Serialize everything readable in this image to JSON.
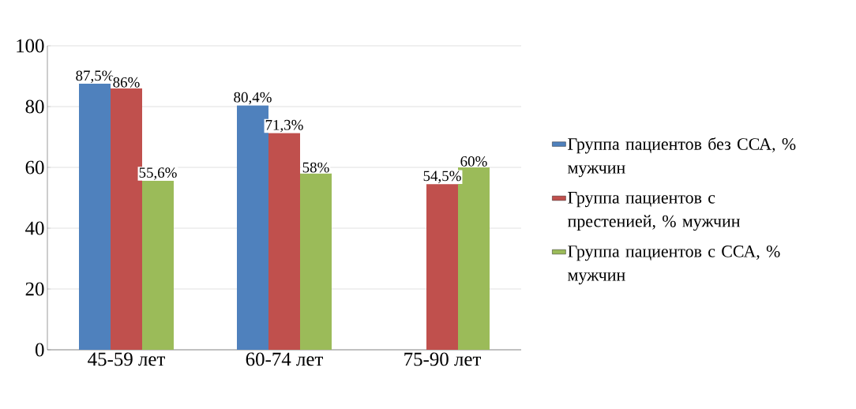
{
  "chart_data": {
    "type": "bar",
    "categories": [
      "45-59 лет",
      "60-74 лет",
      "75-90 лет"
    ],
    "series": [
      {
        "name": "Группа пациентов без ССА, % мужчин",
        "color": "#4f81bd",
        "values": [
          87.5,
          80.4,
          null
        ],
        "value_labels": [
          "87,5%",
          "80,4%",
          null
        ]
      },
      {
        "name": "Группа пациентов с престенией, % мужчин",
        "color": "#c0504d",
        "values": [
          86,
          71.3,
          54.5
        ],
        "value_labels": [
          "86%",
          "71,3%",
          "54,5%"
        ]
      },
      {
        "name": "Группа пациентов с ССА, % мужчин",
        "color": "#9bbb59",
        "values": [
          55.6,
          58,
          60
        ],
        "value_labels": [
          "55,6%",
          "58%",
          "60%"
        ]
      }
    ],
    "ylim": [
      0,
      100
    ],
    "yticks": [
      0,
      20,
      40,
      60,
      80,
      100
    ],
    "grid": "y",
    "legend": "right"
  }
}
